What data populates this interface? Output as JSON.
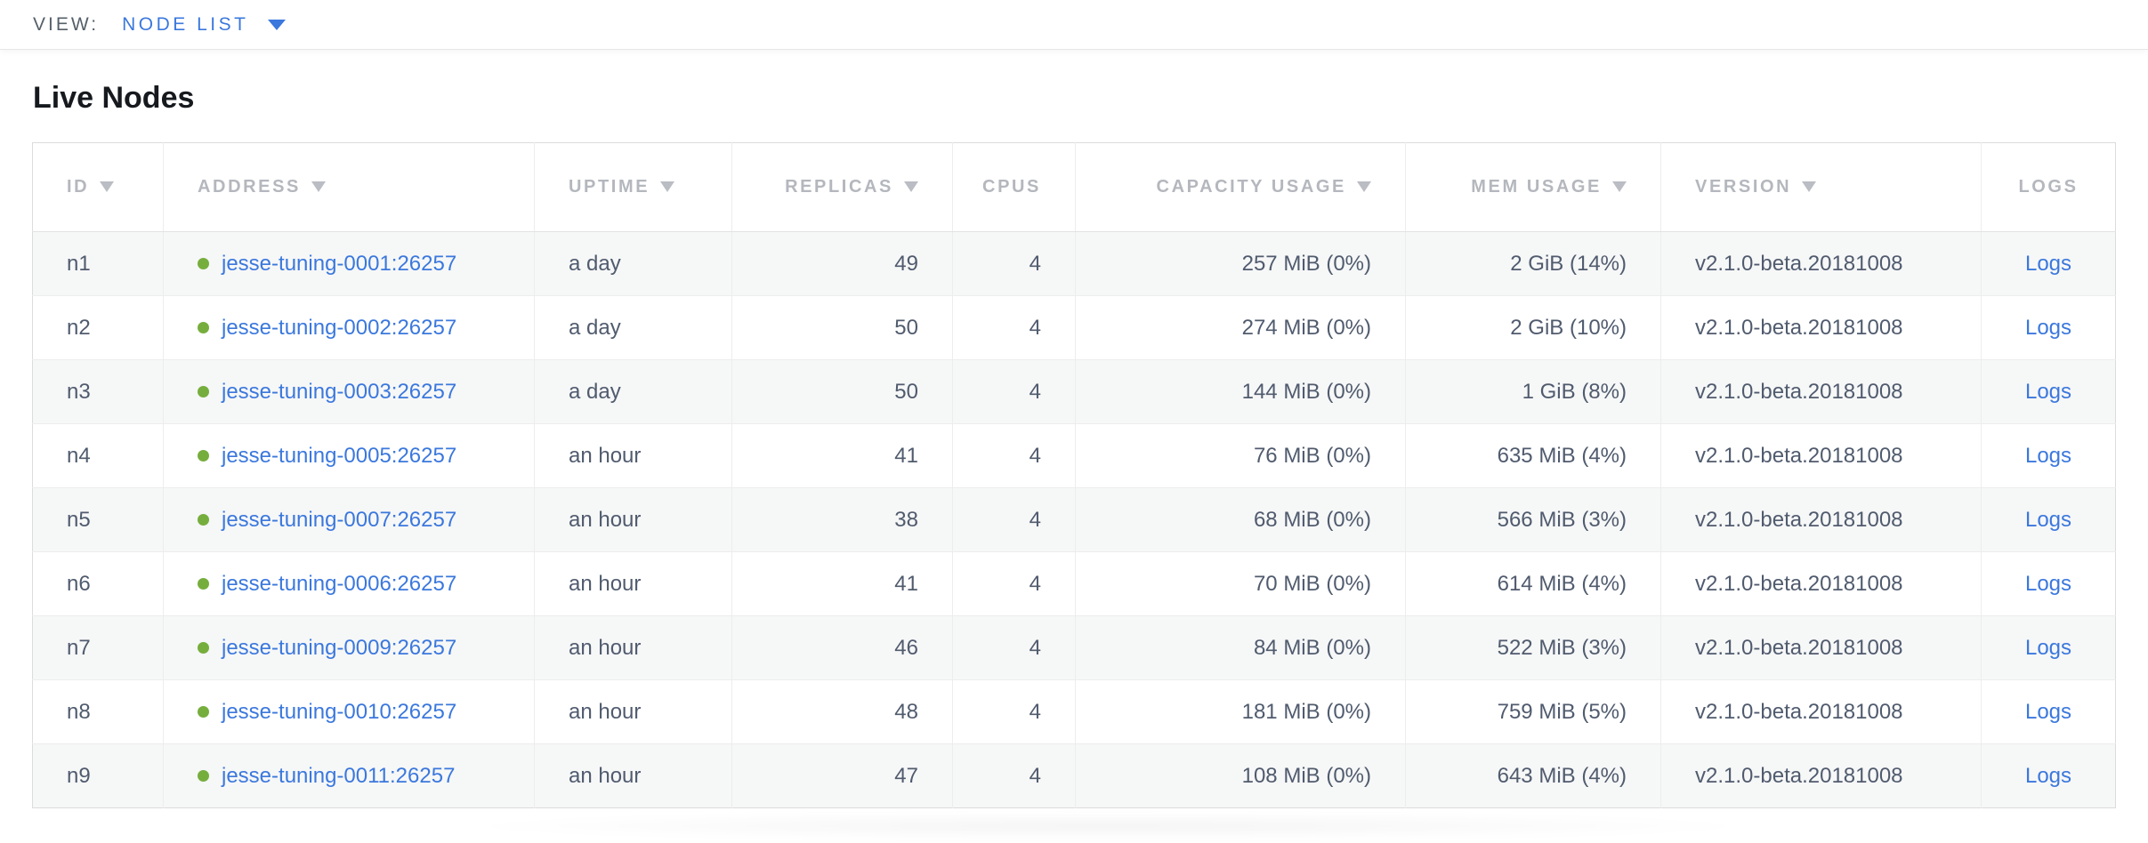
{
  "view_bar": {
    "label": "VIEW:",
    "selected_view": "NODE LIST"
  },
  "page": {
    "title": "Live Nodes"
  },
  "table": {
    "columns": [
      {
        "key": "id",
        "label": "ID",
        "sortable": true,
        "align": "left"
      },
      {
        "key": "address",
        "label": "ADDRESS",
        "sortable": true,
        "align": "left"
      },
      {
        "key": "uptime",
        "label": "UPTIME",
        "sortable": true,
        "align": "left"
      },
      {
        "key": "replicas",
        "label": "REPLICAS",
        "sortable": true,
        "align": "right"
      },
      {
        "key": "cpus",
        "label": "CPUS",
        "sortable": false,
        "align": "right"
      },
      {
        "key": "capacity_usage",
        "label": "CAPACITY USAGE",
        "sortable": true,
        "align": "right"
      },
      {
        "key": "mem_usage",
        "label": "MEM USAGE",
        "sortable": true,
        "align": "right"
      },
      {
        "key": "version",
        "label": "VERSION",
        "sortable": true,
        "align": "left"
      },
      {
        "key": "logs",
        "label": "LOGS",
        "sortable": false,
        "align": "center"
      }
    ],
    "rows": [
      {
        "id": "n1",
        "address": "jesse-tuning-0001:26257",
        "uptime": "a day",
        "replicas": "49",
        "cpus": "4",
        "capacity_usage": "257 MiB (0%)",
        "mem_usage": "2 GiB (14%)",
        "version": "v2.1.0-beta.20181008",
        "logs": "Logs"
      },
      {
        "id": "n2",
        "address": "jesse-tuning-0002:26257",
        "uptime": "a day",
        "replicas": "50",
        "cpus": "4",
        "capacity_usage": "274 MiB (0%)",
        "mem_usage": "2 GiB (10%)",
        "version": "v2.1.0-beta.20181008",
        "logs": "Logs"
      },
      {
        "id": "n3",
        "address": "jesse-tuning-0003:26257",
        "uptime": "a day",
        "replicas": "50",
        "cpus": "4",
        "capacity_usage": "144 MiB (0%)",
        "mem_usage": "1 GiB (8%)",
        "version": "v2.1.0-beta.20181008",
        "logs": "Logs"
      },
      {
        "id": "n4",
        "address": "jesse-tuning-0005:26257",
        "uptime": "an hour",
        "replicas": "41",
        "cpus": "4",
        "capacity_usage": "76 MiB (0%)",
        "mem_usage": "635 MiB (4%)",
        "version": "v2.1.0-beta.20181008",
        "logs": "Logs"
      },
      {
        "id": "n5",
        "address": "jesse-tuning-0007:26257",
        "uptime": "an hour",
        "replicas": "38",
        "cpus": "4",
        "capacity_usage": "68 MiB (0%)",
        "mem_usage": "566 MiB (3%)",
        "version": "v2.1.0-beta.20181008",
        "logs": "Logs"
      },
      {
        "id": "n6",
        "address": "jesse-tuning-0006:26257",
        "uptime": "an hour",
        "replicas": "41",
        "cpus": "4",
        "capacity_usage": "70 MiB (0%)",
        "mem_usage": "614 MiB (4%)",
        "version": "v2.1.0-beta.20181008",
        "logs": "Logs"
      },
      {
        "id": "n7",
        "address": "jesse-tuning-0009:26257",
        "uptime": "an hour",
        "replicas": "46",
        "cpus": "4",
        "capacity_usage": "84 MiB (0%)",
        "mem_usage": "522 MiB (3%)",
        "version": "v2.1.0-beta.20181008",
        "logs": "Logs"
      },
      {
        "id": "n8",
        "address": "jesse-tuning-0010:26257",
        "uptime": "an hour",
        "replicas": "48",
        "cpus": "4",
        "capacity_usage": "181 MiB (0%)",
        "mem_usage": "759 MiB (5%)",
        "version": "v2.1.0-beta.20181008",
        "logs": "Logs"
      },
      {
        "id": "n9",
        "address": "jesse-tuning-0011:26257",
        "uptime": "an hour",
        "replicas": "47",
        "cpus": "4",
        "capacity_usage": "108 MiB (0%)",
        "mem_usage": "643 MiB (4%)",
        "version": "v2.1.0-beta.20181008",
        "logs": "Logs"
      }
    ]
  },
  "colors": {
    "accent_blue": "#3b78dd",
    "status_green": "#76ae3e"
  }
}
